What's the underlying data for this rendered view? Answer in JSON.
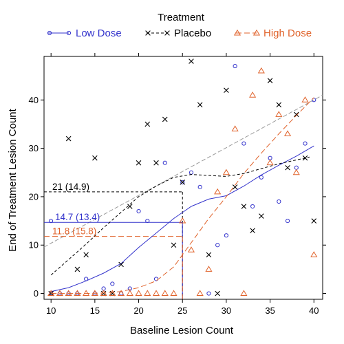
{
  "chart_data": {
    "type": "scatter",
    "title": "",
    "xlabel": "Baseline Lesion Count",
    "ylabel": "End of Treatment Lesion Count",
    "xlim": [
      9.2,
      41.0
    ],
    "ylim": [
      -1.2,
      49.0
    ],
    "x_ticks": [
      10,
      15,
      20,
      25,
      30,
      35,
      40
    ],
    "y_ticks": [
      0,
      10,
      20,
      30,
      40
    ],
    "grid": false,
    "legend": {
      "title": "Treatment",
      "position": "top",
      "items": [
        {
          "label": "Low Dose",
          "color": "#3333cc",
          "marker": "circle",
          "line": "solid"
        },
        {
          "label": "Placebo",
          "color": "#000000",
          "marker": "cross",
          "line": "dashed"
        },
        {
          "label": "High Dose",
          "color": "#e0622a",
          "marker": "triangle",
          "line": "longdash"
        }
      ]
    },
    "series": [
      {
        "name": "Low Dose",
        "color": "#3333cc",
        "points": [
          [
            10,
            0
          ],
          [
            11,
            0
          ],
          [
            12,
            0
          ],
          [
            13,
            0
          ],
          [
            14,
            3
          ],
          [
            15,
            0
          ],
          [
            16,
            1
          ],
          [
            17,
            2
          ],
          [
            18,
            0
          ],
          [
            19,
            1
          ],
          [
            20,
            17
          ],
          [
            21,
            15
          ],
          [
            22,
            3
          ],
          [
            23,
            27
          ],
          [
            25,
            23
          ],
          [
            26,
            25
          ],
          [
            27,
            22
          ],
          [
            28,
            0
          ],
          [
            29,
            10
          ],
          [
            30,
            12
          ],
          [
            31,
            47
          ],
          [
            32,
            31
          ],
          [
            33,
            18
          ],
          [
            34,
            24
          ],
          [
            35,
            28
          ],
          [
            36,
            19
          ],
          [
            37,
            15
          ],
          [
            38,
            26
          ],
          [
            39,
            31
          ],
          [
            40,
            40
          ]
        ],
        "fit": [
          [
            10,
            0.4
          ],
          [
            12,
            1.2
          ],
          [
            14,
            2.6
          ],
          [
            16,
            4.2
          ],
          [
            18,
            6.2
          ],
          [
            20,
            9.5
          ],
          [
            22,
            12.5
          ],
          [
            24,
            15.5
          ],
          [
            26,
            18
          ],
          [
            28,
            19.5
          ],
          [
            30,
            20.2
          ],
          [
            32,
            22.2
          ],
          [
            34,
            24.5
          ],
          [
            36,
            26.5
          ],
          [
            38,
            28.4
          ],
          [
            40,
            30.5
          ]
        ]
      },
      {
        "name": "Placebo",
        "color": "#000000",
        "points": [
          [
            10,
            0
          ],
          [
            12,
            32
          ],
          [
            13,
            5
          ],
          [
            14,
            8
          ],
          [
            15,
            28
          ],
          [
            16,
            0
          ],
          [
            17,
            0
          ],
          [
            18,
            6
          ],
          [
            19,
            18
          ],
          [
            20,
            27
          ],
          [
            21,
            35
          ],
          [
            22,
            27
          ],
          [
            23,
            36
          ],
          [
            24,
            10
          ],
          [
            25,
            23
          ],
          [
            26,
            48
          ],
          [
            27,
            39
          ],
          [
            28,
            8
          ],
          [
            29,
            0
          ],
          [
            30,
            42
          ],
          [
            31,
            22
          ],
          [
            32,
            18
          ],
          [
            33,
            13
          ],
          [
            34,
            16
          ],
          [
            35,
            44
          ],
          [
            36,
            39
          ],
          [
            37,
            26
          ],
          [
            38,
            37
          ],
          [
            39,
            28
          ],
          [
            40,
            15
          ]
        ],
        "fit": [
          [
            10,
            3.8
          ],
          [
            12,
            7
          ],
          [
            14,
            10.2
          ],
          [
            16,
            13.6
          ],
          [
            18,
            16.8
          ],
          [
            20,
            20
          ],
          [
            22,
            22.2
          ],
          [
            24,
            24
          ],
          [
            26,
            24.6
          ],
          [
            28,
            24.4
          ],
          [
            30,
            24.2
          ],
          [
            32,
            24.8
          ],
          [
            34,
            25.8
          ],
          [
            36,
            26.8
          ],
          [
            38,
            27.6
          ],
          [
            39.5,
            28.2
          ]
        ]
      },
      {
        "name": "High Dose",
        "color": "#e0622a",
        "points": [
          [
            10,
            0
          ],
          [
            11,
            0
          ],
          [
            12,
            0
          ],
          [
            13,
            0
          ],
          [
            14,
            0
          ],
          [
            15,
            0
          ],
          [
            16,
            0
          ],
          [
            17,
            0
          ],
          [
            18,
            0
          ],
          [
            19,
            0
          ],
          [
            20,
            0
          ],
          [
            21,
            0
          ],
          [
            22,
            0
          ],
          [
            23,
            0
          ],
          [
            24,
            0
          ],
          [
            25,
            15
          ],
          [
            26,
            9
          ],
          [
            27,
            0
          ],
          [
            28,
            5
          ],
          [
            29,
            21
          ],
          [
            30,
            25
          ],
          [
            31,
            34
          ],
          [
            32,
            0
          ],
          [
            33,
            41
          ],
          [
            34,
            46
          ],
          [
            35,
            27
          ],
          [
            36,
            37
          ],
          [
            37,
            33
          ],
          [
            38,
            25
          ],
          [
            39,
            40
          ],
          [
            40,
            8
          ]
        ],
        "fit": [
          [
            10,
            0
          ],
          [
            14,
            0
          ],
          [
            16,
            0.1
          ],
          [
            18,
            0.4
          ],
          [
            20,
            1.2
          ],
          [
            22,
            2.6
          ],
          [
            24,
            5.5
          ],
          [
            26,
            10.5
          ],
          [
            28,
            15.5
          ],
          [
            30,
            20
          ],
          [
            32,
            24.8
          ],
          [
            34,
            29
          ],
          [
            36,
            33
          ],
          [
            38,
            36.8
          ],
          [
            40,
            40.5
          ]
        ]
      }
    ],
    "reference_lines": [
      {
        "color": "#999999",
        "style": "dashed",
        "from": [
          9.2,
          9.6
        ],
        "to": [
          41,
          41
        ]
      }
    ],
    "annotations": [
      {
        "text": "21 (14.9)",
        "series": "Placebo",
        "x_at": 25,
        "y": 21,
        "color": "#000000"
      },
      {
        "text": "14.7 (13.4)",
        "series": "Low Dose",
        "x_at": 25,
        "y": 14.7,
        "color": "#3333cc"
      },
      {
        "text": "11.8 (15.8)",
        "series": "High Dose",
        "x_at": 25,
        "y": 11.8,
        "color": "#e0622a"
      }
    ]
  }
}
